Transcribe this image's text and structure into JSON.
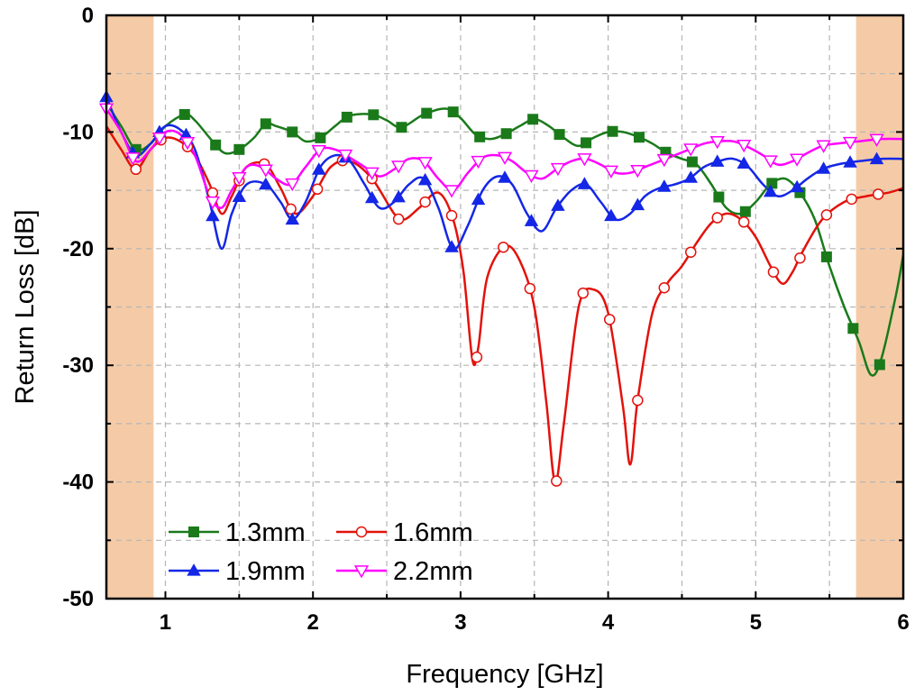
{
  "chart_data": {
    "type": "line",
    "title": "",
    "xlabel": "Frequency [GHz]",
    "ylabel": "Return Loss [dB]",
    "xlim": [
      0.6,
      6
    ],
    "ylim": [
      -50,
      0
    ],
    "x_ticks": [
      1,
      2,
      3,
      4,
      5,
      6
    ],
    "x_tick_labels": [
      "1",
      "2",
      "3",
      "4",
      "5",
      "6"
    ],
    "y_ticks": [
      0,
      -10,
      -20,
      -30,
      -40,
      -50
    ],
    "y_tick_labels": [
      "0",
      "-10",
      "-20",
      "-30",
      "-40",
      "-50"
    ],
    "grid": true,
    "legend_position": "bottom-left",
    "shaded_bands": [
      {
        "x": [
          0.6,
          0.92
        ],
        "color": "#f5cba7"
      },
      {
        "x": [
          5.68,
          6.0
        ],
        "color": "#f5cba7"
      }
    ],
    "series": [
      {
        "name": "1.3mm",
        "color": "#1a7a1a",
        "marker": "square",
        "x": [
          0.6,
          0.7,
          0.8,
          0.9,
          1.0,
          1.13,
          1.2,
          1.3,
          1.4,
          1.5,
          1.6,
          1.68,
          1.75,
          1.86,
          1.95,
          2.05,
          2.15,
          2.25,
          2.4,
          2.5,
          2.6,
          2.75,
          2.9,
          3.0,
          3.1,
          3.2,
          3.3,
          3.4,
          3.5,
          3.6,
          3.7,
          3.8,
          3.9,
          4.0,
          4.1,
          4.2,
          4.3,
          4.4,
          4.5,
          4.6,
          4.7,
          4.8,
          4.9,
          5.0,
          5.1,
          5.2,
          5.3,
          5.4,
          5.5,
          5.6,
          5.7,
          5.78,
          5.85,
          5.95,
          6.0
        ],
        "y": [
          -7.5,
          -9.5,
          -11.5,
          -11.0,
          -9.5,
          -8.5,
          -9.0,
          -10.5,
          -11.8,
          -11.5,
          -10.5,
          -9.3,
          -9.5,
          -10.0,
          -10.8,
          -10.5,
          -9.5,
          -8.6,
          -8.5,
          -9.0,
          -9.6,
          -8.5,
          -8.0,
          -8.8,
          -10.2,
          -10.6,
          -10.2,
          -9.5,
          -8.9,
          -9.5,
          -10.5,
          -11.2,
          -10.5,
          -10.0,
          -10.0,
          -10.4,
          -11.0,
          -11.8,
          -12.3,
          -12.8,
          -14.5,
          -16.5,
          -17.0,
          -16.0,
          -14.5,
          -14.0,
          -15.2,
          -17.5,
          -21.5,
          -25.0,
          -28.0,
          -30.8,
          -29.5,
          -24.0,
          -20.5
        ],
        "marker_x": [
          0.8,
          1.13,
          1.34,
          1.5,
          1.68,
          1.86,
          2.05,
          2.23,
          2.41,
          2.6,
          2.77,
          2.95,
          3.13,
          3.31,
          3.49,
          3.67,
          3.85,
          4.03,
          4.21,
          4.39,
          4.57,
          4.75,
          4.93,
          5.11,
          5.3,
          5.48,
          5.66,
          5.84
        ]
      },
      {
        "name": "1.6mm",
        "color": "#e3120b",
        "marker": "circle",
        "x": [
          0.6,
          0.7,
          0.8,
          0.9,
          1.0,
          1.1,
          1.2,
          1.3,
          1.38,
          1.45,
          1.55,
          1.68,
          1.78,
          1.88,
          2.0,
          2.12,
          2.25,
          2.4,
          2.55,
          2.62,
          2.72,
          2.85,
          2.95,
          3.02,
          3.08,
          3.12,
          3.18,
          3.3,
          3.4,
          3.5,
          3.58,
          3.64,
          3.7,
          3.8,
          3.9,
          4.0,
          4.1,
          4.15,
          4.2,
          4.3,
          4.4,
          4.5,
          4.6,
          4.7,
          4.8,
          4.9,
          5.0,
          5.1,
          5.18,
          5.25,
          5.32,
          5.45,
          5.6,
          5.75,
          5.9,
          6.0
        ],
        "y": [
          -9.5,
          -11.5,
          -13.2,
          -11.5,
          -10.5,
          -10.8,
          -12.0,
          -14.5,
          -17.0,
          -15.5,
          -13.0,
          -12.8,
          -14.8,
          -17.0,
          -15.5,
          -13.0,
          -12.5,
          -14.0,
          -17.0,
          -17.5,
          -16.5,
          -15.2,
          -17.5,
          -22.0,
          -29.5,
          -28.5,
          -22.5,
          -19.8,
          -21.0,
          -25.0,
          -33.0,
          -40.0,
          -35.0,
          -25.0,
          -23.5,
          -25.5,
          -33.5,
          -38.5,
          -33.0,
          -25.5,
          -23.0,
          -21.5,
          -19.5,
          -17.8,
          -17.0,
          -17.5,
          -19.0,
          -21.5,
          -23.0,
          -22.0,
          -20.2,
          -17.5,
          -16.0,
          -15.5,
          -15.2,
          -14.8
        ],
        "marker_x": [
          0.8,
          0.97,
          1.15,
          1.32,
          1.5,
          1.67,
          1.85,
          2.03,
          2.2,
          2.4,
          2.58,
          2.76,
          2.94,
          3.11,
          3.29,
          3.47,
          3.65,
          3.83,
          4.01,
          4.2,
          4.38,
          4.56,
          4.74,
          4.92,
          5.12,
          5.3,
          5.48,
          5.65,
          5.83
        ]
      },
      {
        "name": "1.9mm",
        "color": "#1427e6",
        "marker": "triangle-up",
        "x": [
          0.6,
          0.7,
          0.8,
          0.9,
          1.0,
          1.1,
          1.2,
          1.3,
          1.38,
          1.45,
          1.55,
          1.68,
          1.78,
          1.86,
          1.95,
          2.05,
          2.15,
          2.25,
          2.35,
          2.45,
          2.55,
          2.65,
          2.75,
          2.85,
          2.95,
          3.05,
          3.15,
          3.25,
          3.35,
          3.45,
          3.55,
          3.65,
          3.75,
          3.85,
          3.95,
          4.05,
          4.15,
          4.25,
          4.35,
          4.45,
          4.55,
          4.65,
          4.75,
          4.85,
          4.95,
          5.05,
          5.15,
          5.25,
          5.35,
          5.45,
          5.55,
          5.7,
          5.85,
          6.0
        ],
        "y": [
          -7.0,
          -10.0,
          -12.0,
          -11.0,
          -9.5,
          -9.8,
          -11.5,
          -16.0,
          -20.0,
          -17.0,
          -14.5,
          -14.5,
          -16.0,
          -17.5,
          -16.0,
          -13.0,
          -12.0,
          -12.5,
          -14.5,
          -16.5,
          -16.0,
          -14.5,
          -14.0,
          -16.5,
          -20.0,
          -18.0,
          -15.0,
          -13.8,
          -14.5,
          -17.0,
          -18.5,
          -16.5,
          -15.0,
          -14.5,
          -16.0,
          -17.5,
          -17.0,
          -15.5,
          -14.8,
          -14.5,
          -14.0,
          -13.0,
          -12.5,
          -12.3,
          -13.0,
          -14.5,
          -15.5,
          -15.0,
          -14.0,
          -13.2,
          -12.8,
          -12.5,
          -12.3,
          -12.3
        ],
        "marker_x": [
          0.6,
          0.78,
          0.96,
          1.14,
          1.32,
          1.5,
          1.68,
          1.86,
          2.04,
          2.22,
          2.4,
          2.58,
          2.76,
          2.94,
          3.12,
          3.3,
          3.48,
          3.66,
          3.84,
          4.02,
          4.2,
          4.38,
          4.56,
          4.74,
          4.92,
          5.1,
          5.28,
          5.46,
          5.64,
          5.82
        ]
      },
      {
        "name": "2.2mm",
        "color": "#ff00ff",
        "marker": "triangle-down",
        "x": [
          0.6,
          0.7,
          0.8,
          0.9,
          1.0,
          1.1,
          1.2,
          1.3,
          1.38,
          1.45,
          1.55,
          1.65,
          1.75,
          1.85,
          1.95,
          2.05,
          2.15,
          2.25,
          2.35,
          2.45,
          2.55,
          2.65,
          2.75,
          2.85,
          2.95,
          3.05,
          3.15,
          3.25,
          3.35,
          3.45,
          3.55,
          3.65,
          3.75,
          3.85,
          3.95,
          4.05,
          4.15,
          4.25,
          4.35,
          4.45,
          4.55,
          4.65,
          4.75,
          4.85,
          4.95,
          5.05,
          5.15,
          5.25,
          5.35,
          5.45,
          5.55,
          5.7,
          5.85,
          6.0
        ],
        "y": [
          -8.0,
          -10.0,
          -12.5,
          -11.5,
          -10.0,
          -10.2,
          -12.0,
          -15.5,
          -16.5,
          -15.0,
          -13.0,
          -13.0,
          -14.0,
          -14.5,
          -13.0,
          -11.5,
          -11.5,
          -12.2,
          -13.0,
          -13.8,
          -13.2,
          -12.3,
          -12.5,
          -14.0,
          -15.0,
          -13.5,
          -12.2,
          -12.0,
          -12.5,
          -13.5,
          -14.0,
          -13.2,
          -12.5,
          -12.3,
          -12.8,
          -13.5,
          -13.5,
          -13.0,
          -12.5,
          -12.0,
          -11.5,
          -11.0,
          -10.8,
          -10.8,
          -11.3,
          -12.0,
          -12.8,
          -12.5,
          -11.8,
          -11.2,
          -11.0,
          -10.8,
          -10.6,
          -10.6
        ],
        "marker_x": [
          0.6,
          0.78,
          0.96,
          1.15,
          1.32,
          1.5,
          1.68,
          1.86,
          2.04,
          2.22,
          2.4,
          2.58,
          2.76,
          2.94,
          3.12,
          3.3,
          3.48,
          3.66,
          3.84,
          4.02,
          4.2,
          4.38,
          4.56,
          4.74,
          4.92,
          5.1,
          5.28,
          5.46,
          5.64,
          5.82
        ]
      }
    ]
  }
}
